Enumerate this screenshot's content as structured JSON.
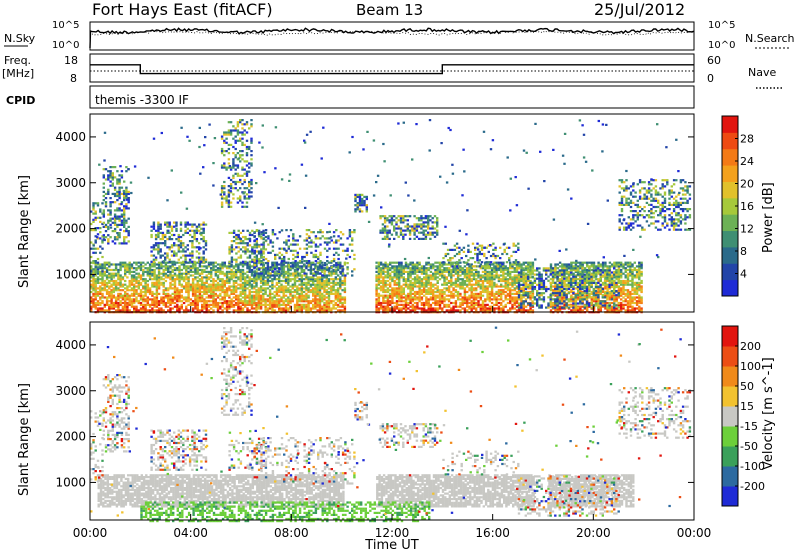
{
  "header": {
    "station": "Fort Hays East (fitACF)",
    "beam": "Beam 13",
    "date": "25/Jul/2012"
  },
  "noise_panel": {
    "left_label": "N.Sky",
    "right_label": "N.Search",
    "left_ticks": [
      "10^5",
      "10^0"
    ],
    "right_ticks": [
      "10^5",
      "10^0"
    ]
  },
  "freq_panel": {
    "left_label_1": "Freq.",
    "left_label_2": "[MHz]",
    "right_label": "Nave",
    "left_ticks": [
      "18",
      "8"
    ],
    "right_ticks": [
      "60",
      "0"
    ],
    "freq_series_mhz": [
      {
        "t": 0.0,
        "v": 14.6
      },
      {
        "t": 2.0,
        "v": 14.6
      },
      {
        "t": 2.0,
        "v": 10.2
      },
      {
        "t": 14.0,
        "v": 10.2
      },
      {
        "t": 14.0,
        "v": 14.6
      },
      {
        "t": 24.0,
        "v": 14.6
      }
    ],
    "nave_level": 30
  },
  "cpid_panel": {
    "label": "CPID",
    "value": "themis -3300 IF"
  },
  "chart_data": [
    {
      "type": "heatmap",
      "name": "power",
      "xlabel": "",
      "ylabel": "Slant Range [km]",
      "colorbar_label": "Power [dB]",
      "colorbar_ticks": [
        "28",
        "24",
        "20",
        "16",
        "12",
        "8",
        "4"
      ],
      "y_ticks": [
        "4000",
        "3000",
        "2000",
        "1000"
      ],
      "xlim": [
        0,
        24
      ],
      "ylim": [
        180,
        4500
      ],
      "colorscale": [
        "#1f2bd6",
        "#2244a8",
        "#2a6a8a",
        "#3f8f73",
        "#6cb155",
        "#a6c93a",
        "#e1c12b",
        "#f4a11c",
        "#f47a16",
        "#ef4a12",
        "#e2150f"
      ],
      "scatter_regions": [
        {
          "t0": 0.0,
          "t1": 0.5,
          "r0": 1000,
          "r1": 2600,
          "p": 30
        },
        {
          "t0": 0.5,
          "t1": 1.5,
          "r0": 1700,
          "r1": 3400,
          "p": 45
        },
        {
          "t0": 2.4,
          "t1": 4.6,
          "r0": 1300,
          "r1": 2200,
          "p": 50
        },
        {
          "t0": 5.2,
          "t1": 6.4,
          "r0": 2500,
          "r1": 4400,
          "p": 35
        },
        {
          "t0": 5.5,
          "t1": 7.0,
          "r0": 1300,
          "r1": 2000,
          "p": 45
        },
        {
          "t0": 6.5,
          "t1": 10.5,
          "r0": 1000,
          "r1": 2000,
          "p": 30
        },
        {
          "t0": 10.5,
          "t1": 11.0,
          "r0": 2400,
          "r1": 2800,
          "p": 55
        },
        {
          "t0": 11.5,
          "t1": 13.8,
          "r0": 1800,
          "r1": 2300,
          "p": 50
        },
        {
          "t0": 14.0,
          "t1": 17.0,
          "r0": 1200,
          "r1": 1700,
          "p": 25
        },
        {
          "t0": 17.0,
          "t1": 21.0,
          "r0": 300,
          "r1": 1200,
          "p": 50
        },
        {
          "t0": 21.0,
          "t1": 23.8,
          "r0": 2000,
          "r1": 3100,
          "p": 40
        }
      ],
      "dense_band": {
        "r0": 200,
        "r1": 1300,
        "breaks": [
          [
            10.1,
            11.3
          ],
          [
            17.6,
            18.2
          ],
          [
            21.9,
            24.0
          ]
        ]
      }
    },
    {
      "type": "heatmap",
      "name": "velocity",
      "xlabel": "Time UT",
      "ylabel": "Slant Range [km]",
      "colorbar_label": "Velocity [m s^-1]",
      "colorbar_ticks": [
        "200",
        "100",
        "50",
        "15",
        "-15",
        "-50",
        "-100",
        "-200"
      ],
      "y_ticks": [
        "4000",
        "3000",
        "2000",
        "1000"
      ],
      "x_ticks": [
        "00:00",
        "04:00",
        "08:00",
        "12:00",
        "16:00",
        "20:00",
        "00:00"
      ],
      "xlim": [
        0,
        24
      ],
      "ylim": [
        180,
        4500
      ],
      "colorscale": [
        "#1f2bd6",
        "#2c6aa0",
        "#3aa05a",
        "#6ccf3a",
        "#c8c8c4",
        "#f2c230",
        "#f08a1a",
        "#ec4e15",
        "#e2150f"
      ],
      "dominant_color": "#c8c8c4",
      "ground_scatter_band": {
        "r0": 500,
        "r1": 1200,
        "t0": 0.3,
        "t1": 21.6
      },
      "green_streak": {
        "t0": 2.0,
        "t1": 13.5,
        "r0": 180,
        "r1": 600
      }
    }
  ]
}
